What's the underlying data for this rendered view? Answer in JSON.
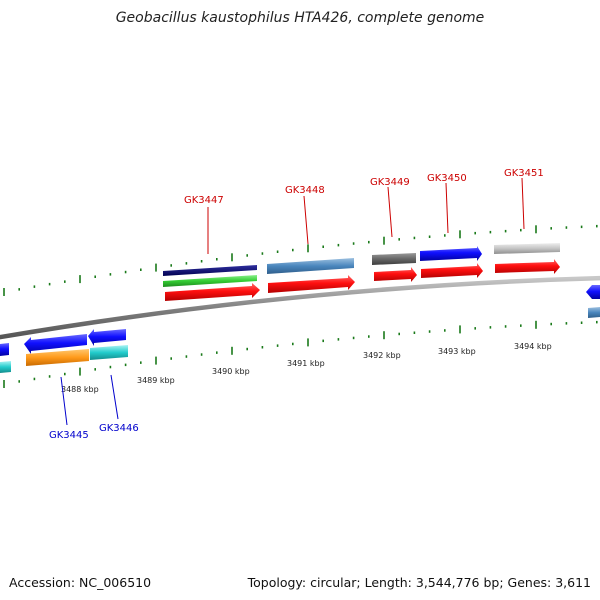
{
  "title": "Geobacillus kaustophilus HTA426, complete genome",
  "footer": {
    "accession": "Accession: NC_006510",
    "summary": "Topology: circular; Length: 3,544,776 bp; Genes: 3,611"
  },
  "colors": {
    "forward_label": "#cc0000",
    "reverse_label": "#0000cc",
    "tick": "#1a7a1a",
    "backbone": "#777777"
  },
  "scale_labels": [
    "3488 kbp",
    "3489 kbp",
    "3490 kbp",
    "3491 kbp",
    "3492 kbp",
    "3493 kbp",
    "3494 kbp"
  ],
  "forward_genes": [
    {
      "id": "GK3447"
    },
    {
      "id": "GK3448"
    },
    {
      "id": "GK3449"
    },
    {
      "id": "GK3450"
    },
    {
      "id": "GK3451"
    }
  ],
  "reverse_genes": [
    {
      "id": "GK3445"
    },
    {
      "id": "GK3446"
    }
  ]
}
